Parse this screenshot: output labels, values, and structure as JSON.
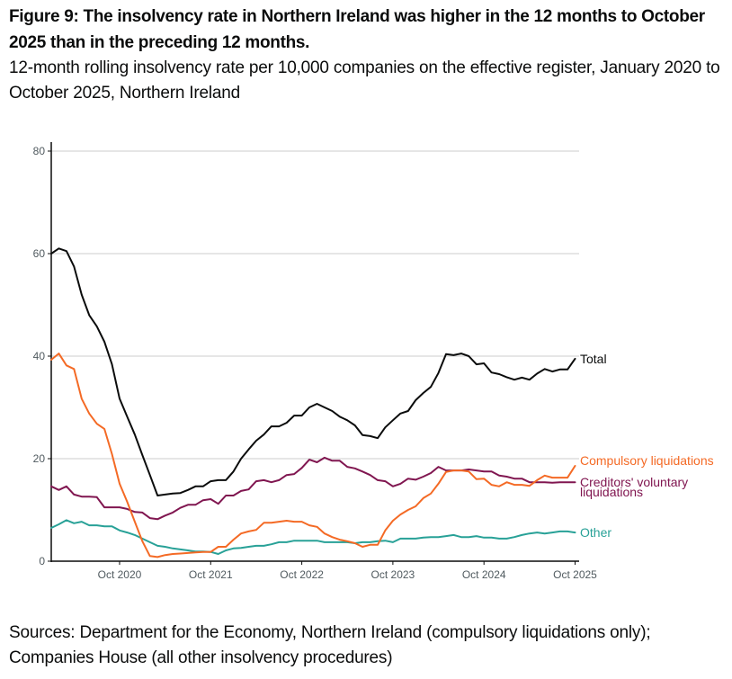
{
  "title": "Figure 9: The insolvency rate in Northern Ireland was higher in the 12 months to October 2025 than in the preceding 12 months.",
  "subtitle": "12-month rolling insolvency rate per 10,000 companies on the effective register, January 2020 to October 2025, Northern Ireland",
  "source": "Sources: Department for the Economy, Northern Ireland (compulsory liquidations only); Companies House (all other insolvency procedures)",
  "chart_data": {
    "type": "line",
    "title": "Figure 9: The insolvency rate in Northern Ireland was higher in the 12 months to October 2025 than in the preceding 12 months.",
    "subtitle": "12-month rolling insolvency rate per 10,000 companies on the effective register, January 2020 to October 2025, Northern Ireland",
    "xlabel": "",
    "ylabel": "",
    "x_start": "January 2020",
    "x_end": "October 2025",
    "x_frequency": "monthly",
    "ylim": [
      0,
      80
    ],
    "yticks": [
      0,
      20,
      40,
      60,
      80
    ],
    "xtick_labels": [
      "Oct 2020",
      "Oct 2021",
      "Oct 2022",
      "Oct 2023",
      "Oct 2024",
      "Oct 2025"
    ],
    "xtick_month_index": [
      9,
      21,
      33,
      45,
      57,
      69
    ],
    "grid": "horizontal",
    "legend": "direct labels at line ends (right)",
    "series": [
      {
        "name": "Total",
        "label": "Total",
        "color": "#0b0c0c",
        "values": [
          60,
          61,
          60.5,
          57.5,
          52,
          48,
          45.8,
          42.8,
          38.4,
          31.7,
          28.2,
          24.7,
          20.7,
          16.8,
          12.8,
          13,
          13.2,
          13.3,
          13.9,
          14.6,
          14.6,
          15.6,
          15.8,
          15.8,
          17.5,
          20,
          21.8,
          23.5,
          24.7,
          26.3,
          26.3,
          27,
          28.4,
          28.4,
          30,
          30.7,
          30,
          29.3,
          28.2,
          27.5,
          26.5,
          24.6,
          24.4,
          24,
          26.1,
          27.5,
          28.8,
          29.3,
          31.4,
          32.8,
          34,
          36.7,
          40.4,
          40.2,
          40.5,
          40,
          38.4,
          38.6,
          36.8,
          36.5,
          35.9,
          35.4,
          35.8,
          35.4,
          36.6,
          37.5,
          37,
          37.4,
          37.4,
          39.5
        ]
      },
      {
        "name": "Compulsory liquidations",
        "label": "Compulsory liquidations",
        "color": "#f46a25",
        "values": [
          39.3,
          40.5,
          38.2,
          37.5,
          31.7,
          28.8,
          26.8,
          25.8,
          20.9,
          15.1,
          11.6,
          7.7,
          3.9,
          1,
          0.8,
          1.2,
          1.4,
          1.5,
          1.6,
          1.7,
          1.8,
          1.8,
          2.8,
          2.8,
          4.2,
          5.4,
          5.8,
          6.1,
          7.5,
          7.5,
          7.7,
          7.9,
          7.7,
          7.7,
          7,
          6.7,
          5.4,
          4.7,
          4.2,
          3.9,
          3.5,
          2.8,
          3.2,
          3.2,
          6,
          7.9,
          9.1,
          10,
          10.7,
          12.3,
          13.2,
          15.1,
          17.4,
          17.7,
          17.7,
          17.5,
          16,
          16.1,
          14.9,
          14.6,
          15.4,
          14.9,
          14.9,
          14.7,
          15.8,
          16.7,
          16.3,
          16.3,
          16.3,
          18.6
        ]
      },
      {
        "name": "Creditors' voluntary liquidations",
        "label_lines": [
          "Creditors' voluntary",
          "liquidations"
        ],
        "color": "#801650",
        "values": [
          14.6,
          13.9,
          14.6,
          13,
          12.6,
          12.6,
          12.5,
          10.5,
          10.5,
          10.5,
          10.2,
          9.6,
          9.5,
          8.4,
          8.2,
          8.9,
          9.5,
          10.4,
          11,
          11,
          11.9,
          12.1,
          11.2,
          12.8,
          12.8,
          13.7,
          14,
          15.6,
          15.8,
          15.4,
          15.8,
          16.8,
          17,
          18.2,
          19.8,
          19.3,
          20.2,
          19.6,
          19.6,
          18.4,
          18.1,
          17.5,
          16.8,
          15.8,
          15.6,
          14.6,
          15.1,
          16.1,
          15.9,
          16.5,
          17.2,
          18.4,
          17.7,
          17.7,
          17.7,
          17.9,
          17.7,
          17.5,
          17.5,
          16.7,
          16.5,
          16.1,
          16.1,
          15.4,
          15.4,
          15.4,
          15.3,
          15.4,
          15.4,
          15.4
        ]
      },
      {
        "name": "Other",
        "label": "Other",
        "color": "#28a197",
        "values": [
          6.5,
          7.2,
          8,
          7.4,
          7.7,
          7,
          7,
          6.8,
          6.8,
          6,
          5.6,
          5.1,
          4.4,
          3.7,
          3,
          2.8,
          2.5,
          2.3,
          2.1,
          1.9,
          1.9,
          1.8,
          1.4,
          2.1,
          2.5,
          2.6,
          2.8,
          3,
          3,
          3.3,
          3.7,
          3.7,
          4,
          4,
          4,
          4,
          3.7,
          3.7,
          3.7,
          3.7,
          3.5,
          3.7,
          3.7,
          3.9,
          4,
          3.7,
          4.4,
          4.4,
          4.4,
          4.6,
          4.7,
          4.7,
          4.9,
          5.1,
          4.7,
          4.7,
          4.9,
          4.6,
          4.6,
          4.4,
          4.4,
          4.7,
          5.1,
          5.4,
          5.6,
          5.4,
          5.6,
          5.8,
          5.8,
          5.6
        ]
      }
    ]
  }
}
